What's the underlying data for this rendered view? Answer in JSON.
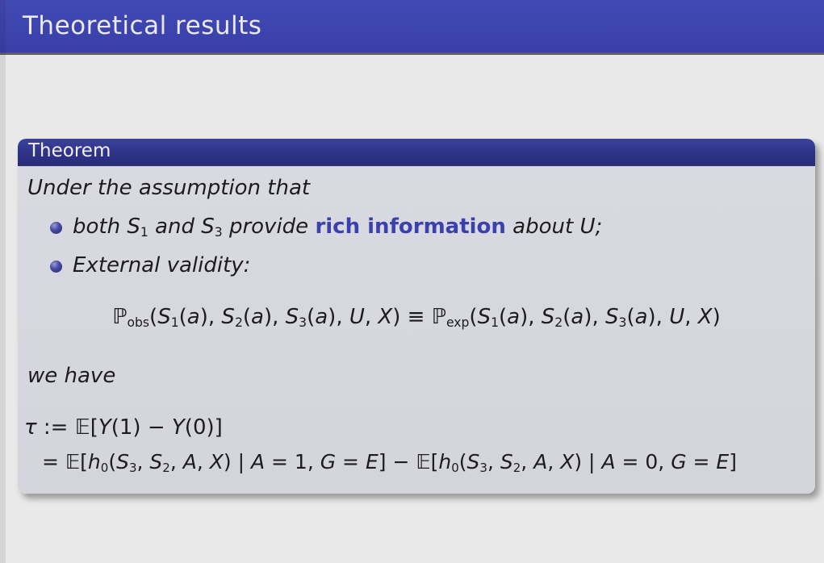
{
  "slide": {
    "title": "Theoretical results"
  },
  "theorem": {
    "header": "Theorem",
    "intro": "Under the assumption that",
    "bullets": [
      {
        "segments": [
          {
            "t": "both ",
            "c": "it"
          },
          {
            "t": "S",
            "c": "v"
          },
          {
            "t": "1",
            "c": "sub"
          },
          {
            "t": " and ",
            "c": "it"
          },
          {
            "t": "S",
            "c": "v"
          },
          {
            "t": "3",
            "c": "sub"
          },
          {
            "t": " provide ",
            "c": "it"
          },
          {
            "t": "rich information",
            "c": "hl"
          },
          {
            "t": " about ",
            "c": "it"
          },
          {
            "t": "U",
            "c": "v"
          },
          {
            "t": ";",
            "c": "it"
          }
        ]
      },
      {
        "segments": [
          {
            "t": "External validity:",
            "c": "it"
          }
        ]
      }
    ],
    "display_math": {
      "segments": [
        {
          "t": "ℙ",
          "c": "bb"
        },
        {
          "t": "obs",
          "c": "sub"
        },
        {
          "t": "(",
          "c": "n"
        },
        {
          "t": "S",
          "c": "v"
        },
        {
          "t": "1",
          "c": "sub"
        },
        {
          "t": "(",
          "c": "n"
        },
        {
          "t": "a",
          "c": "v"
        },
        {
          "t": "), ",
          "c": "n"
        },
        {
          "t": "S",
          "c": "v"
        },
        {
          "t": "2",
          "c": "sub"
        },
        {
          "t": "(",
          "c": "n"
        },
        {
          "t": "a",
          "c": "v"
        },
        {
          "t": "), ",
          "c": "n"
        },
        {
          "t": "S",
          "c": "v"
        },
        {
          "t": "3",
          "c": "sub"
        },
        {
          "t": "(",
          "c": "n"
        },
        {
          "t": "a",
          "c": "v"
        },
        {
          "t": "), ",
          "c": "n"
        },
        {
          "t": "U",
          "c": "v"
        },
        {
          "t": ", ",
          "c": "n"
        },
        {
          "t": "X",
          "c": "v"
        },
        {
          "t": ")",
          "c": "n"
        },
        {
          "t": " ≡ ",
          "c": "n"
        },
        {
          "t": "ℙ",
          "c": "bb"
        },
        {
          "t": "exp",
          "c": "sub"
        },
        {
          "t": "(",
          "c": "n"
        },
        {
          "t": "S",
          "c": "v"
        },
        {
          "t": "1",
          "c": "sub"
        },
        {
          "t": "(",
          "c": "n"
        },
        {
          "t": "a",
          "c": "v"
        },
        {
          "t": "), ",
          "c": "n"
        },
        {
          "t": "S",
          "c": "v"
        },
        {
          "t": "2",
          "c": "sub"
        },
        {
          "t": "(",
          "c": "n"
        },
        {
          "t": "a",
          "c": "v"
        },
        {
          "t": "), ",
          "c": "n"
        },
        {
          "t": "S",
          "c": "v"
        },
        {
          "t": "3",
          "c": "sub"
        },
        {
          "t": "(",
          "c": "n"
        },
        {
          "t": "a",
          "c": "v"
        },
        {
          "t": "), ",
          "c": "n"
        },
        {
          "t": "U",
          "c": "v"
        },
        {
          "t": ", ",
          "c": "n"
        },
        {
          "t": "X",
          "c": "v"
        },
        {
          "t": ")",
          "c": "n"
        }
      ]
    },
    "we_have": "we have",
    "tau_line": {
      "segments": [
        {
          "t": "τ",
          "c": "v"
        },
        {
          "t": " := ",
          "c": "n"
        },
        {
          "t": "𝔼",
          "c": "bb"
        },
        {
          "t": "[",
          "c": "n"
        },
        {
          "t": "Y",
          "c": "v"
        },
        {
          "t": "(1) − ",
          "c": "n"
        },
        {
          "t": "Y",
          "c": "v"
        },
        {
          "t": "(0)]",
          "c": "n"
        }
      ]
    },
    "eq_line": {
      "segments": [
        {
          "t": "= ",
          "c": "n"
        },
        {
          "t": "𝔼",
          "c": "bb"
        },
        {
          "t": "[",
          "c": "n"
        },
        {
          "t": "h",
          "c": "v"
        },
        {
          "t": "0",
          "c": "sub"
        },
        {
          "t": "(",
          "c": "n"
        },
        {
          "t": "S",
          "c": "v"
        },
        {
          "t": "3",
          "c": "sub"
        },
        {
          "t": ", ",
          "c": "n"
        },
        {
          "t": "S",
          "c": "v"
        },
        {
          "t": "2",
          "c": "sub"
        },
        {
          "t": ", ",
          "c": "n"
        },
        {
          "t": "A",
          "c": "v"
        },
        {
          "t": ", ",
          "c": "n"
        },
        {
          "t": "X",
          "c": "v"
        },
        {
          "t": ") | ",
          "c": "n"
        },
        {
          "t": "A",
          "c": "v"
        },
        {
          "t": " = 1, ",
          "c": "n"
        },
        {
          "t": "G",
          "c": "v"
        },
        {
          "t": " = ",
          "c": "n"
        },
        {
          "t": "E",
          "c": "v"
        },
        {
          "t": "] − ",
          "c": "n"
        },
        {
          "t": "𝔼",
          "c": "bb"
        },
        {
          "t": "[",
          "c": "n"
        },
        {
          "t": "h",
          "c": "v"
        },
        {
          "t": "0",
          "c": "sub"
        },
        {
          "t": "(",
          "c": "n"
        },
        {
          "t": "S",
          "c": "v"
        },
        {
          "t": "3",
          "c": "sub"
        },
        {
          "t": ", ",
          "c": "n"
        },
        {
          "t": "S",
          "c": "v"
        },
        {
          "t": "2",
          "c": "sub"
        },
        {
          "t": ", ",
          "c": "n"
        },
        {
          "t": "A",
          "c": "v"
        },
        {
          "t": ", ",
          "c": "n"
        },
        {
          "t": "X",
          "c": "v"
        },
        {
          "t": ") | ",
          "c": "n"
        },
        {
          "t": "A",
          "c": "v"
        },
        {
          "t": " = 0, ",
          "c": "n"
        },
        {
          "t": "G",
          "c": "v"
        },
        {
          "t": " = ",
          "c": "n"
        },
        {
          "t": "E",
          "c": "v"
        },
        {
          "t": "]",
          "c": "n"
        }
      ]
    }
  },
  "colors": {
    "title_bar": "#3d44ae",
    "title_text": "#e9eaf4",
    "theorem_header": "#2e3389",
    "theorem_header_text": "#eff0f8",
    "theorem_body": "#d5d6dd",
    "page_background": "#e9e9e9",
    "highlight_text": "#3a41ad",
    "bullet_ball": "#2b2d7e",
    "body_text": "#1c1c1e"
  }
}
